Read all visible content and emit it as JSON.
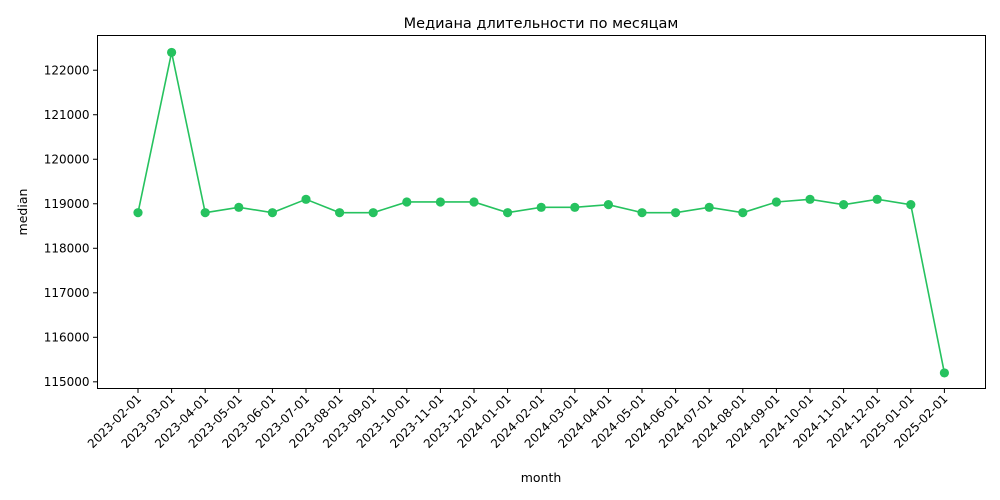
{
  "chart_data": {
    "type": "line",
    "title": "Медиана длительности по месяцам",
    "xlabel": "month",
    "ylabel": "median",
    "color": "#26c25f",
    "grid": false,
    "legend": "none",
    "ylim": [
      114850,
      122780
    ],
    "y_ticks": [
      115000,
      116000,
      117000,
      118000,
      119000,
      120000,
      121000,
      122000
    ],
    "x": [
      "2023-02-01",
      "2023-03-01",
      "2023-04-01",
      "2023-05-01",
      "2023-06-01",
      "2023-07-01",
      "2023-08-01",
      "2023-09-01",
      "2023-10-01",
      "2023-11-01",
      "2023-12-01",
      "2024-01-01",
      "2024-02-01",
      "2024-03-01",
      "2024-04-01",
      "2024-05-01",
      "2024-06-01",
      "2024-07-01",
      "2024-08-01",
      "2024-09-01",
      "2024-10-01",
      "2024-11-01",
      "2024-12-01",
      "2025-01-01",
      "2025-02-01"
    ],
    "series": [
      {
        "values": [
          118800,
          122400,
          118800,
          118920,
          118800,
          119100,
          118800,
          118800,
          119040,
          119040,
          119040,
          118800,
          118920,
          118920,
          118980,
          118800,
          118800,
          118920,
          118800,
          119040,
          119100,
          118980,
          119100,
          118980,
          115200
        ]
      }
    ]
  }
}
